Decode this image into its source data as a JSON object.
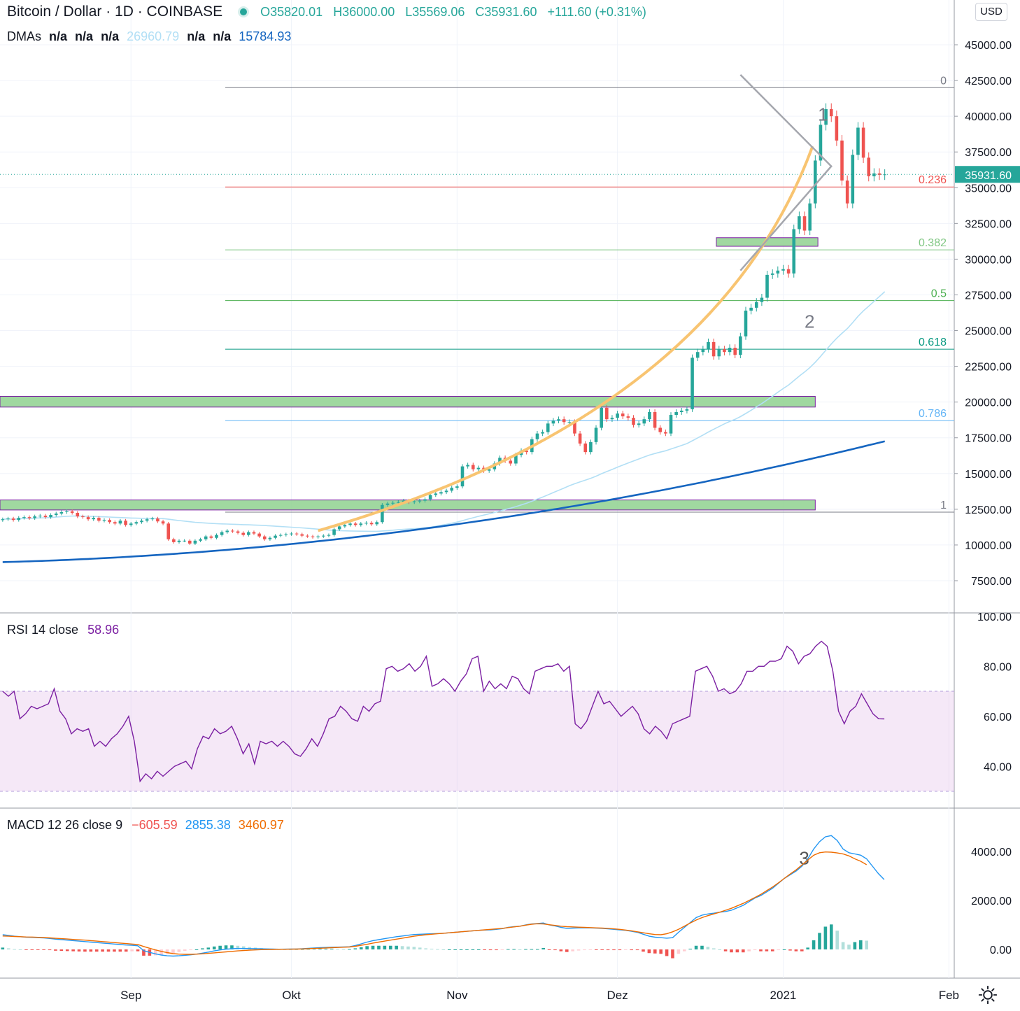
{
  "header": {
    "symbol": "Bitcoin / Dollar · 1D · COINBASE",
    "open": "O35820.01",
    "high": "H36000.00",
    "low": "L35569.06",
    "close": "C35931.60",
    "change": "+111.60 (+0.31%)"
  },
  "dmas": {
    "label": "DMAs",
    "v1": "n/a",
    "v2": "n/a",
    "v3": "n/a",
    "v4": "26960.79",
    "v5": "n/a",
    "v6": "n/a",
    "v7": "15784.93"
  },
  "currency": "USD",
  "rsi_legend": {
    "label": "RSI 14 close",
    "value": "58.96"
  },
  "macd_legend": {
    "label": "MACD 12 26 close 9",
    "hist": "−605.59",
    "macd": "2855.38",
    "signal": "3460.97"
  },
  "colors": {
    "up": "#26a69a",
    "down": "#ef5350",
    "ma_light": "#b2dff5",
    "ma_dark": "#1565c0",
    "curve": "#f8c471",
    "rsi": "#7b1fa2",
    "macd": "#2196f3",
    "signal": "#ef6c00",
    "zone": "#8fd18f",
    "zone_border": "#7b1fa2"
  },
  "chart_data": {
    "type": "candlestick",
    "price_axis": {
      "ticks": [
        "45000.00",
        "42500.00",
        "40000.00",
        "37500.00",
        "35000.00",
        "32500.00",
        "30000.00",
        "27500.00",
        "25000.00",
        "22500.00",
        "20000.00",
        "17500.00",
        "15000.00",
        "12500.00",
        "10000.00",
        "7500.00"
      ],
      "range": [
        6000,
        47000
      ],
      "last_price": "35931.60"
    },
    "time_axis": {
      "labels": [
        {
          "text": "Sep",
          "day": 36
        },
        {
          "text": "Okt",
          "day": 66
        },
        {
          "text": "Nov",
          "day": 97
        },
        {
          "text": "Dez",
          "day": 127
        },
        {
          "text": "2021",
          "day": 158
        },
        {
          "text": "Feb",
          "day": 189
        }
      ],
      "range_days": [
        11.5,
        190
      ]
    },
    "candles_close": [
      11800,
      11850,
      11750,
      11900,
      11950,
      11880,
      12000,
      12050,
      11950,
      12100,
      12200,
      12300,
      12350,
      12250,
      12000,
      11950,
      11800,
      11900,
      11700,
      11750,
      11600,
      11500,
      11700,
      11400,
      11500,
      11600,
      11700,
      11800,
      11850,
      11650,
      11500,
      10400,
      10200,
      10300,
      10300,
      10100,
      10300,
      10400,
      10600,
      10500,
      10700,
      10900,
      11000,
      10950,
      10850,
      10700,
      10900,
      10800,
      10600,
      10400,
      10500,
      10650,
      10700,
      10750,
      10800,
      10750,
      10650,
      10600,
      10550,
      10600,
      10650,
      10700,
      11100,
      11300,
      11400,
      11500,
      11400,
      11500,
      11550,
      11450,
      11600,
      12800,
      12900,
      12950,
      13000,
      13100,
      13000,
      13050,
      13100,
      13200,
      13500,
      13600,
      13700,
      13800,
      14000,
      14100,
      15500,
      15600,
      15300,
      15400,
      15200,
      15300,
      15700,
      16100,
      15900,
      15700,
      16300,
      16600,
      16500,
      17400,
      17800,
      17900,
      18500,
      18700,
      18800,
      18600,
      18600,
      17800,
      17100,
      16500,
      17200,
      18200,
      19600,
      18800,
      18900,
      19200,
      19000,
      18900,
      18400,
      18500,
      18800,
      19300,
      18200,
      17900,
      17800,
      19100,
      19300,
      19400,
      19500,
      23100,
      23500,
      23700,
      24200,
      23200,
      23700,
      23500,
      23800,
      23300,
      24600,
      26400,
      26600,
      27000,
      27300,
      28900,
      29000,
      29200,
      29300,
      29000,
      32100,
      33000,
      32000,
      33900,
      36900,
      39400,
      40500,
      40000,
      38300,
      35500,
      33900,
      37300,
      39200,
      37100,
      35800,
      36000,
      35900,
      35931.6
    ],
    "fib_levels": [
      {
        "label": "0",
        "price": 42000
      },
      {
        "label": "0.236",
        "price": 35050
      },
      {
        "label": "0.382",
        "price": 30650
      },
      {
        "label": "0.5",
        "price": 27100
      },
      {
        "label": "0.618",
        "price": 23700
      },
      {
        "label": "0.786",
        "price": 18700
      },
      {
        "label": "1",
        "price": 12300
      }
    ],
    "zones": [
      {
        "x0_day": 11.5,
        "x1_day": 164,
        "y0": 19650,
        "y1": 20400
      },
      {
        "x0_day": 11.5,
        "x1_day": 164,
        "y0": 12450,
        "y1": 13150
      },
      {
        "x0_day": 145.5,
        "x1_day": 164.5,
        "y0": 30900,
        "y1": 31500
      }
    ],
    "annotations": [
      {
        "text": "1",
        "day": 164.5,
        "price": 39700
      },
      {
        "text": "2",
        "day": 162,
        "price": 25200
      },
      {
        "text": "3",
        "day": 161,
        "macd": 3470
      }
    ],
    "rsi": {
      "ticks": [
        "100.00",
        "80.00",
        "60.00",
        "40.00"
      ],
      "range": [
        25,
        103
      ],
      "band": [
        30,
        70
      ],
      "values": [
        70,
        68,
        70,
        59,
        61,
        64,
        63,
        64,
        65,
        71,
        62,
        59,
        53,
        55,
        54,
        55,
        48,
        50,
        48,
        51,
        53,
        56,
        60,
        50,
        34,
        37,
        35,
        38,
        36,
        38,
        40,
        41,
        42,
        39,
        47,
        52,
        51,
        55,
        53,
        54,
        56,
        51,
        45,
        49,
        41,
        50,
        49,
        50,
        48,
        50,
        48,
        45,
        44,
        47,
        51,
        48,
        53,
        59,
        60,
        64,
        62,
        59,
        58,
        64,
        62,
        65,
        66,
        79,
        80,
        78,
        79,
        81,
        78,
        80,
        84,
        72,
        73,
        75,
        73,
        70,
        74,
        77,
        83,
        84,
        70,
        74,
        71,
        73,
        71,
        76,
        75,
        71,
        69,
        78,
        79,
        80,
        80,
        81,
        78,
        80,
        57,
        55,
        58,
        64,
        70,
        65,
        66,
        63,
        60,
        62,
        64,
        61,
        55,
        53,
        56,
        54,
        51,
        57,
        58,
        59,
        60,
        78,
        79,
        80,
        76,
        70,
        71,
        69,
        70,
        73,
        78,
        78,
        80,
        80,
        82,
        82,
        83,
        88,
        86,
        81,
        84,
        85,
        88,
        90,
        88,
        78,
        62,
        57,
        62,
        64,
        69,
        65,
        61,
        59,
        58.96
      ]
    },
    "macd": {
      "ticks": [
        "4000.00",
        "2000.00",
        "0.00"
      ],
      "range": [
        -1200,
        5000
      ],
      "macd": [
        600,
        570,
        540,
        520,
        500,
        490,
        480,
        470,
        450,
        420,
        400,
        380,
        360,
        340,
        320,
        300,
        280,
        260,
        240,
        220,
        200,
        180,
        170,
        150,
        -50,
        -120,
        -180,
        -230,
        -260,
        -270,
        -260,
        -240,
        -220,
        -190,
        -150,
        -110,
        -60,
        -20,
        10,
        30,
        40,
        40,
        35,
        30,
        25,
        20,
        15,
        10,
        12,
        14,
        16,
        30,
        45,
        60,
        70,
        80,
        90,
        95,
        100,
        110,
        160,
        230,
        300,
        360,
        400,
        440,
        480,
        520,
        550,
        580,
        610,
        620,
        630,
        640,
        650,
        660,
        680,
        700,
        720,
        740,
        760,
        780,
        790,
        800,
        820,
        850,
        900,
        930,
        950,
        1000,
        1040,
        1060,
        1080,
        1000,
        960,
        900,
        860,
        870,
        880,
        880,
        880,
        870,
        860,
        840,
        820,
        800,
        780,
        740,
        700,
        620,
        540,
        500,
        480,
        460,
        480,
        700,
        900,
        1100,
        1300,
        1400,
        1450,
        1480,
        1520,
        1550,
        1600,
        1700,
        1800,
        1950,
        2100,
        2200,
        2350,
        2500,
        2700,
        2900,
        3050,
        3200,
        3400,
        3700,
        4100,
        4400,
        4600,
        4650,
        4450,
        4100,
        3950,
        3900,
        3850,
        3700,
        3400,
        3100,
        2855.38
      ],
      "signal": [
        550,
        540,
        530,
        520,
        510,
        505,
        495,
        485,
        470,
        455,
        440,
        425,
        410,
        395,
        380,
        360,
        340,
        320,
        300,
        280,
        260,
        240,
        220,
        200,
        120,
        50,
        -20,
        -80,
        -130,
        -170,
        -190,
        -200,
        -200,
        -190,
        -180,
        -160,
        -140,
        -120,
        -100,
        -80,
        -60,
        -45,
        -30,
        -20,
        -10,
        -5,
        0,
        5,
        8,
        12,
        15,
        20,
        30,
        40,
        50,
        60,
        70,
        80,
        90,
        100,
        130,
        170,
        210,
        260,
        300,
        340,
        380,
        420,
        460,
        500,
        540,
        570,
        600,
        620,
        640,
        660,
        680,
        700,
        720,
        740,
        760,
        780,
        800,
        820,
        840,
        860,
        890,
        920,
        950,
        990,
        1030,
        1050,
        1040,
        1010,
        980,
        950,
        930,
        920,
        910,
        900,
        890,
        880,
        870,
        860,
        840,
        820,
        790,
        760,
        720,
        680,
        640,
        610,
        600,
        640,
        720,
        820,
        950,
        1080,
        1200,
        1300,
        1380,
        1450,
        1520,
        1600,
        1680,
        1780,
        1880,
        2000,
        2120,
        2250,
        2400,
        2550,
        2720,
        2900,
        3080,
        3250,
        3450,
        3650,
        3850,
        3950,
        3980,
        3970,
        3940,
        3900,
        3820,
        3700,
        3600,
        3460.97
      ]
    }
  }
}
